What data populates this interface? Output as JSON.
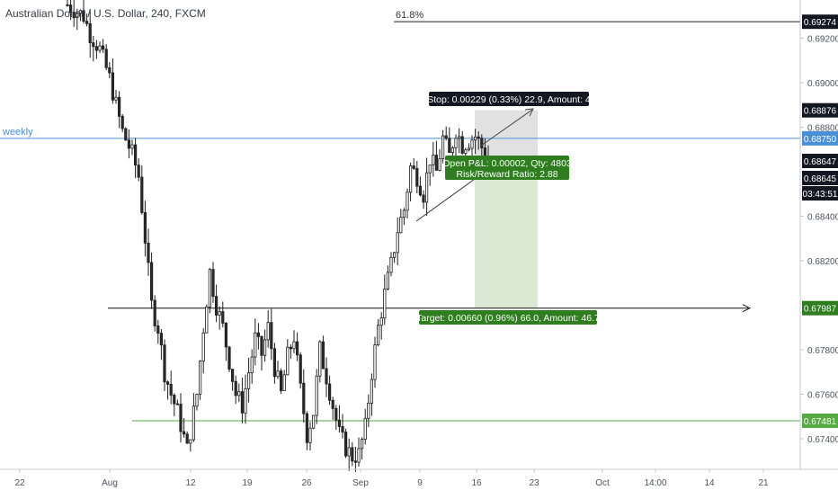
{
  "symbol_title": "Australian Dollar / U.S. Dollar, 240, FXCM",
  "colors": {
    "up_body": "#2b2b2b",
    "candle": "#1e1e1e",
    "weekly_line": "#4a90d9",
    "support_line": "#55aa44",
    "target_zone": "#d6e6cf",
    "stop_zone": "#dcdcdc",
    "label_green": "#2e7d1f",
    "label_dark": "#131722",
    "axis_text": "#50535e",
    "grid_border": "#c7c9cf"
  },
  "chart_data": {
    "type": "candlestick",
    "title": "Australian Dollar / U.S. Dollar, 240, FXCM",
    "x_tick_labels": [
      "22",
      "Aug",
      "12",
      "19",
      "26",
      "Sep",
      "9",
      "16",
      "23",
      "Oct",
      "14:00",
      "14",
      "21"
    ],
    "y_tick_labels": [
      0.692,
      0.69,
      0.688,
      0.684,
      0.682,
      0.678,
      0.676,
      0.674
    ],
    "ylim": [
      0.6729,
      0.6935
    ],
    "price_path": [
      [
        0,
        0.6935
      ],
      [
        5,
        0.693
      ],
      [
        7,
        0.6922
      ],
      [
        10,
        0.6915
      ],
      [
        13,
        0.6902
      ],
      [
        15,
        0.689
      ],
      [
        17,
        0.6878
      ],
      [
        20,
        0.6868
      ],
      [
        22,
        0.6858
      ],
      [
        24,
        0.683
      ],
      [
        26,
        0.68
      ],
      [
        28,
        0.679
      ],
      [
        30,
        0.677
      ],
      [
        32,
        0.676
      ],
      [
        34,
        0.6752
      ],
      [
        37,
        0.6735
      ],
      [
        40,
        0.676
      ],
      [
        42,
        0.679
      ],
      [
        44,
        0.6815
      ],
      [
        46,
        0.68
      ],
      [
        48,
        0.679
      ],
      [
        50,
        0.6775
      ],
      [
        52,
        0.676
      ],
      [
        54,
        0.6755
      ],
      [
        56,
        0.677
      ],
      [
        58,
        0.6785
      ],
      [
        60,
        0.6778
      ],
      [
        62,
        0.679
      ],
      [
        64,
        0.6772
      ],
      [
        66,
        0.676
      ],
      [
        68,
        0.6777
      ],
      [
        70,
        0.6786
      ],
      [
        72,
        0.6762
      ],
      [
        74,
        0.6742
      ],
      [
        76,
        0.6752
      ],
      [
        78,
        0.678
      ],
      [
        80,
        0.6768
      ],
      [
        82,
        0.6755
      ],
      [
        84,
        0.6742
      ],
      [
        86,
        0.6736
      ],
      [
        88,
        0.6732
      ],
      [
        90,
        0.6733
      ],
      [
        92,
        0.6745
      ],
      [
        94,
        0.677
      ],
      [
        96,
        0.679
      ],
      [
        98,
        0.6805
      ],
      [
        100,
        0.6818
      ],
      [
        102,
        0.6834
      ],
      [
        104,
        0.6843
      ],
      [
        106,
        0.6862
      ],
      [
        108,
        0.6858
      ],
      [
        110,
        0.685
      ],
      [
        112,
        0.6866
      ],
      [
        114,
        0.686
      ],
      [
        116,
        0.6875
      ],
      [
        118,
        0.6867
      ],
      [
        120,
        0.6879
      ],
      [
        122,
        0.6872
      ],
      [
        124,
        0.6874
      ],
      [
        126,
        0.6876
      ],
      [
        128,
        0.6871
      ],
      [
        130,
        0.6865
      ]
    ],
    "levels": [
      {
        "name": "61.8%",
        "price": 0.69274,
        "label": "0.69274"
      },
      {
        "name": "weekly",
        "price": 0.6875,
        "label": "0.68750"
      },
      {
        "name": "target",
        "price": 0.67987,
        "label": "0.67987"
      },
      {
        "name": "support",
        "price": 0.67481,
        "label": "0.67481"
      }
    ],
    "price_badges": [
      "0.69274",
      "0.68876",
      "0.68750",
      "0.68647",
      "0.68645",
      "03:43:51",
      "0.67987",
      "0.67481"
    ],
    "position": {
      "entry": 0.68647,
      "stop": 0.68876,
      "target": 0.67987,
      "stop_label": "Stop: 0.00229 (0.33%) 22.9, Amount: 4",
      "target_label": "Target: 0.00660 (0.96%) 66.0, Amount: 46.7",
      "pnl_label": "Open P&L: 0.00002, Qty: 4803",
      "rr_label": "Risk/Reward Ratio: 2.88"
    },
    "annotations": {
      "fib_label": "61.8%",
      "weekly_label": "weekly"
    }
  }
}
